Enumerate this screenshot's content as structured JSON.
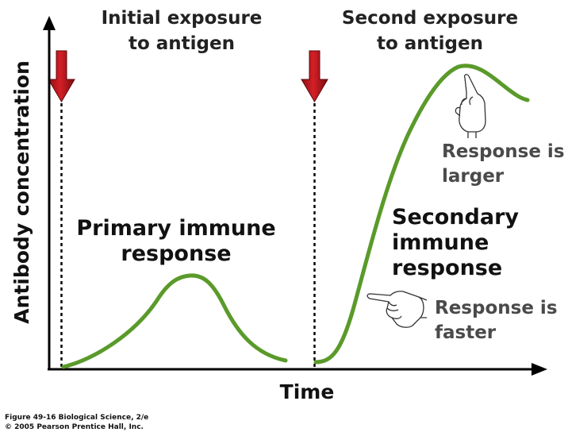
{
  "figure": {
    "labels": {
      "initial_exposure": [
        "Initial exposure",
        "to antigen"
      ],
      "second_exposure": [
        "Second exposure",
        "to antigen"
      ],
      "primary_response": [
        "Primary immune",
        "response"
      ],
      "secondary_response": [
        "Secondary",
        "immune",
        "response"
      ],
      "response_larger": [
        "Response is",
        "larger"
      ],
      "response_faster": [
        "Response is",
        "faster"
      ]
    },
    "axes": {
      "y_label": "Antibody concentration",
      "x_label": "Time"
    },
    "caption": [
      "Figure 49-16  Biological Science, 2/e",
      "© 2005 Pearson Prentice Hall, Inc."
    ]
  },
  "colors": {
    "curve": "#5a9a2a",
    "arrow": "#c8161d",
    "axis": "#000000",
    "note_text": "#4a4a4a"
  },
  "icons": [
    "pointing-hand-up-icon",
    "pointing-hand-left-icon"
  ]
}
